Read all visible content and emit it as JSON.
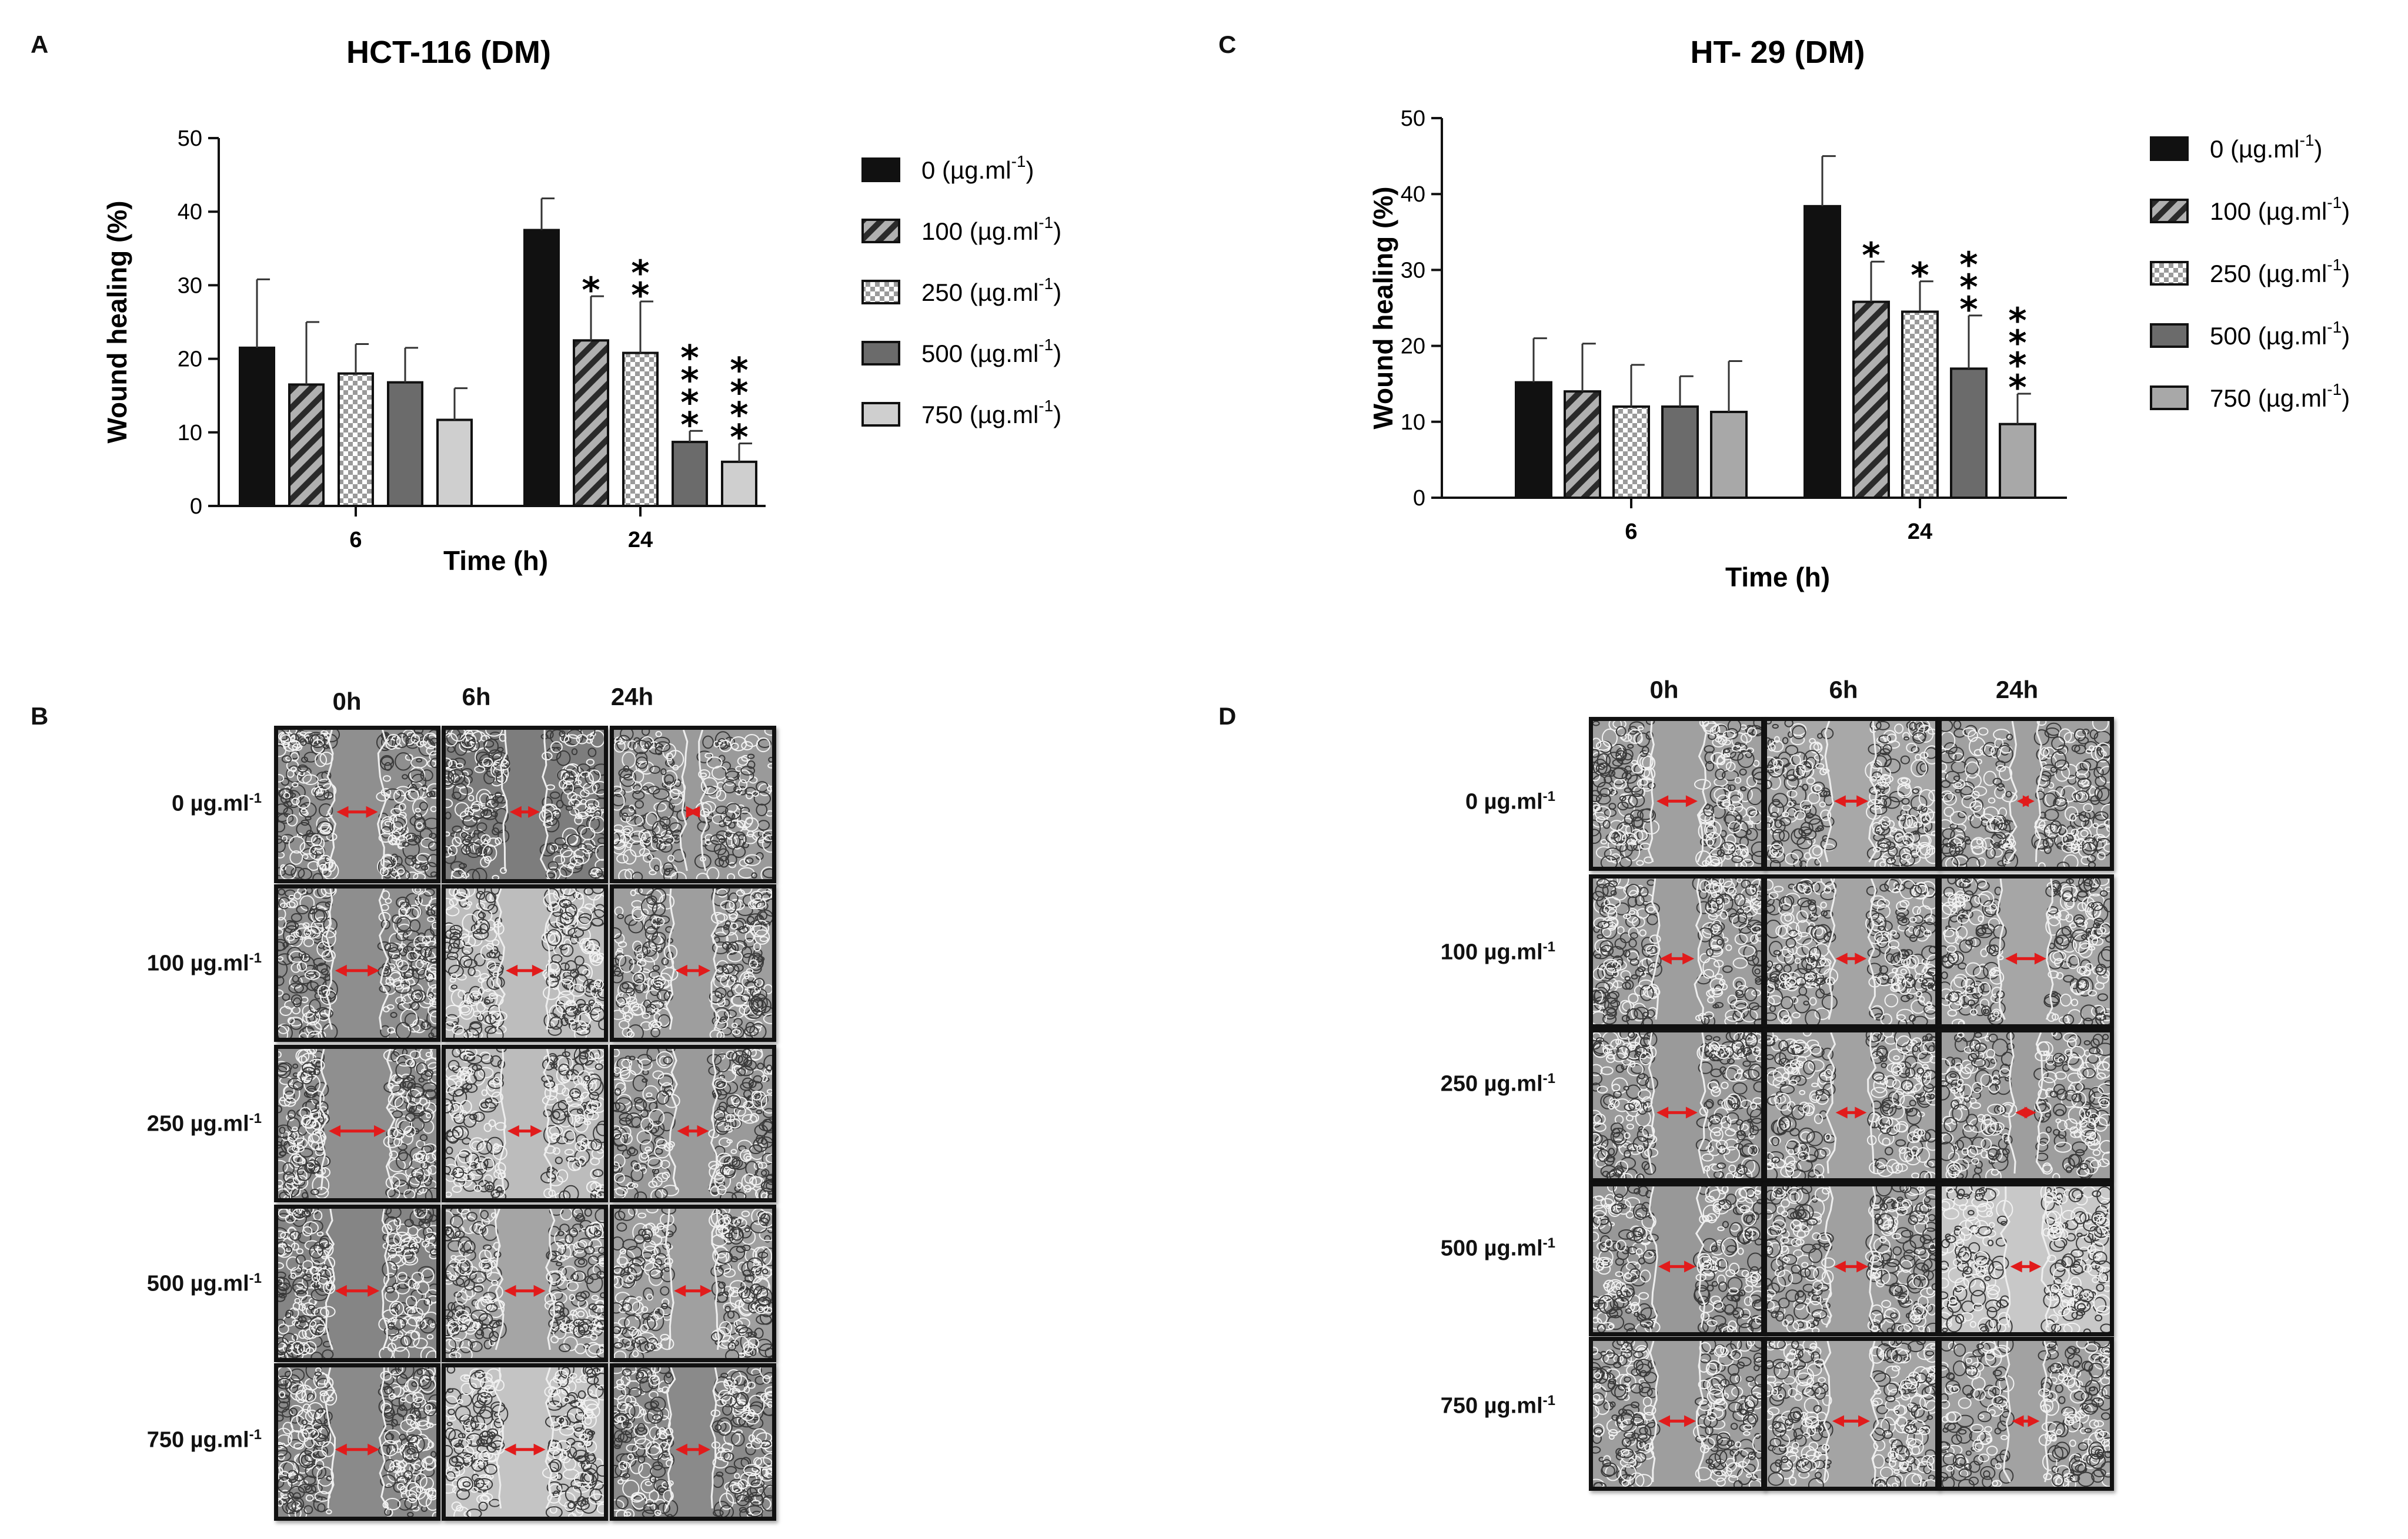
{
  "panels": {
    "a_letter": "A",
    "b_letter": "B",
    "c_letter": "C",
    "d_letter": "D"
  },
  "chart_data": [
    {
      "id": "A",
      "type": "bar",
      "title": "HCT-116 (DM)",
      "xlabel": "Time (h)",
      "ylabel": "Wound healing (%)",
      "ylim": [
        0,
        50
      ],
      "yticks": [
        0,
        10,
        20,
        30,
        40,
        50
      ],
      "categories": [
        "6",
        "24"
      ],
      "legend_position": "right",
      "series": [
        {
          "name": "0 (µg.ml",
          "unit_sup": "-1",
          "unit_close": ")",
          "pattern": "black",
          "values": [
            21.5,
            37.5
          ],
          "errors": [
            9.3,
            4.3
          ],
          "significance": [
            "",
            ""
          ]
        },
        {
          "name": "100 (µg.ml",
          "unit_sup": "-1",
          "unit_close": ")",
          "pattern": "hatch",
          "values": [
            16.5,
            22.5
          ],
          "errors": [
            8.5,
            6.0
          ],
          "significance": [
            "",
            "*"
          ]
        },
        {
          "name": "250 (µg.ml",
          "unit_sup": "-1",
          "unit_close": ")",
          "pattern": "checker",
          "values": [
            18.0,
            20.8
          ],
          "errors": [
            4.0,
            7.0
          ],
          "significance": [
            "",
            "**"
          ]
        },
        {
          "name": "500 (µg.ml",
          "unit_sup": "-1",
          "unit_close": ")",
          "pattern": "darkgray",
          "values": [
            16.8,
            8.7
          ],
          "errors": [
            4.7,
            1.5
          ],
          "significance": [
            "",
            "****"
          ]
        },
        {
          "name": "750 (µg.ml",
          "unit_sup": "-1",
          "unit_close": ")",
          "pattern": "lightgray",
          "values": [
            11.7,
            6.0
          ],
          "errors": [
            4.3,
            2.5
          ],
          "significance": [
            "",
            "****"
          ]
        }
      ]
    },
    {
      "id": "C",
      "type": "bar",
      "title": "HT- 29 (DM)",
      "xlabel": "Time (h)",
      "ylabel": "Wound healing (%)",
      "ylim": [
        0,
        50
      ],
      "yticks": [
        0,
        10,
        20,
        30,
        40,
        50
      ],
      "categories": [
        "6",
        "24"
      ],
      "legend_position": "right",
      "series": [
        {
          "name": "0 (µg.ml",
          "unit_sup": "-1",
          "unit_close": ")",
          "pattern": "black",
          "values": [
            15.2,
            38.4
          ],
          "errors": [
            5.8,
            6.6
          ],
          "significance": [
            "",
            ""
          ]
        },
        {
          "name": "100 (µg.ml",
          "unit_sup": "-1",
          "unit_close": ")",
          "pattern": "hatch",
          "values": [
            14.0,
            25.8
          ],
          "errors": [
            6.3,
            5.3
          ],
          "significance": [
            "",
            "*"
          ]
        },
        {
          "name": "250 (µg.ml",
          "unit_sup": "-1",
          "unit_close": ")",
          "pattern": "checker",
          "values": [
            12.0,
            24.5
          ],
          "errors": [
            5.5,
            4.0
          ],
          "significance": [
            "",
            "*"
          ]
        },
        {
          "name": "500 (µg.ml",
          "unit_sup": "-1",
          "unit_close": ")",
          "pattern": "darkgray",
          "values": [
            12.0,
            17.0
          ],
          "errors": [
            4.0,
            7.0
          ],
          "significance": [
            "",
            "***"
          ]
        },
        {
          "name": "750 (µg.ml",
          "unit_sup": "-1",
          "unit_close": ")",
          "pattern": "lightgray",
          "values": [
            11.3,
            9.7
          ],
          "errors": [
            6.7,
            4.0
          ],
          "significance": [
            "",
            "****"
          ]
        }
      ]
    }
  ],
  "grid_b": {
    "columns": [
      "0h",
      "6h",
      "24h"
    ],
    "rows": [
      {
        "label": "0 µg.ml",
        "sup": "-1"
      },
      {
        "label": "100 µg.ml",
        "sup": "-1"
      },
      {
        "label": "250 µg.ml",
        "sup": "-1"
      },
      {
        "label": "500 µg.ml",
        "sup": "-1"
      },
      {
        "label": "750 µg.ml",
        "sup": "-1"
      }
    ]
  },
  "grid_d": {
    "columns": [
      "0h",
      "6h",
      "24h"
    ],
    "rows": [
      {
        "label": "0 µg.ml",
        "sup": "-1"
      },
      {
        "label": "100 µg.ml",
        "sup": "-1"
      },
      {
        "label": "250 µg.ml",
        "sup": "-1"
      },
      {
        "label": "500 µg.ml",
        "sup": "-1"
      },
      {
        "label": "750 µg.ml",
        "sup": "-1"
      }
    ]
  },
  "colors": {
    "bar_black": "#111111",
    "bar_dark": "#6b6b6b",
    "bar_light": "#cfcfcf",
    "bar_light_c": "#a8a8a8",
    "arrow_red": "#e11b1b",
    "micro_bg": "#8c8c8c"
  }
}
